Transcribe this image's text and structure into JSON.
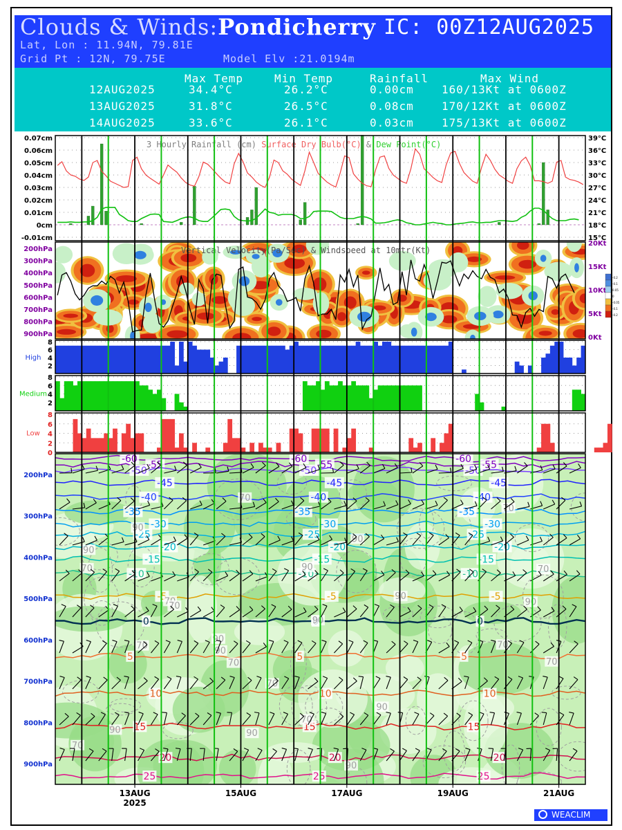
{
  "header": {
    "title": "Clouds & Winds:",
    "location": "Pondicherry",
    "ic": "IC: 00Z12AUG2025",
    "latlon": "Lat, Lon : 11.94N, 79.81E",
    "grid": "Grid Pt  : 12N, 79.75E",
    "model_elv": "Model Elv :21.0194m"
  },
  "summary": {
    "headers": [
      "Max Temp",
      "Min Temp",
      "Rainfall",
      "Max Wind"
    ],
    "rows": [
      {
        "date": "12AUG2025",
        "max_temp": "34.4°C",
        "min_temp": "26.2°C",
        "rain": "0.00cm",
        "wind": "160/13Kt at 0600Z"
      },
      {
        "date": "13AUG2025",
        "max_temp": "31.8°C",
        "min_temp": "26.5°C",
        "rain": "0.08cm",
        "wind": "170/12Kt at 0600Z"
      },
      {
        "date": "14AUG2025",
        "max_temp": "33.6°C",
        "min_temp": "26.1°C",
        "rain": "0.03cm",
        "wind": "175/13Kt at 0600Z"
      }
    ]
  },
  "chart_data": [
    {
      "type": "bar+line",
      "panel": "rain_temp",
      "legend_rain": "3 Hourly Rainfall (cm)",
      "legend_dry": "Surface Dry Bulb(°C)",
      "legend_dew": "Dew Point(°C)",
      "legend_amp": "&",
      "left_ticks": [
        "0.07cm",
        "0.06cm",
        "0.05cm",
        "0.04cm",
        "0.03cm",
        "0.02cm",
        "0.01cm",
        "0cm",
        "-0.01cm"
      ],
      "left_values": [
        0.07,
        0.06,
        0.05,
        0.04,
        0.03,
        0.02,
        0.01,
        0,
        -0.01
      ],
      "right_ticks": [
        "39°C",
        "36°C",
        "33°C",
        "30°C",
        "27°C",
        "24°C",
        "21°C",
        "18°C",
        "15°C"
      ],
      "right_values": [
        39,
        36,
        33,
        30,
        27,
        24,
        21,
        18,
        15
      ],
      "ylim_rain": [
        -0.01,
        0.07
      ],
      "ylim_temp": [
        15,
        39
      ],
      "rain": [
        0,
        0,
        0,
        0.001,
        0,
        0,
        0,
        0.007,
        0.015,
        0,
        0.065,
        0.011,
        0,
        0,
        0,
        0,
        0,
        0,
        0,
        0.001,
        0,
        0,
        0,
        0,
        0,
        0,
        0,
        0,
        0.002,
        0,
        0,
        0.031,
        0,
        0,
        0,
        0,
        0,
        0,
        0,
        0,
        0,
        0,
        0,
        0.006,
        0.012,
        0.03,
        0,
        0,
        0,
        0,
        0,
        0,
        0,
        0,
        0,
        0.004,
        0.018,
        0,
        0,
        0,
        0,
        0,
        0,
        0,
        0,
        0,
        0,
        0,
        0.001,
        0.072,
        0,
        0,
        0,
        0,
        0,
        0,
        0,
        0,
        0,
        0,
        0,
        0,
        0,
        0,
        0,
        0,
        0,
        0,
        0,
        0,
        0,
        0,
        0,
        0,
        0,
        0,
        0,
        0,
        0,
        0,
        0.002,
        0,
        0,
        0,
        0,
        0,
        0,
        0,
        0,
        0.001,
        0.05,
        0.012,
        0,
        0,
        0,
        0
      ],
      "dry_bulb": [
        32.3,
        33.2,
        31,
        30,
        29.7,
        29,
        28.7,
        29.5,
        33,
        33.5,
        30.9,
        29.8,
        28.5,
        28,
        27.5,
        27,
        27.2,
        33.5,
        34.3,
        31.5,
        30,
        29.2,
        28.5,
        27.8,
        30,
        32.4,
        31.5,
        30.7,
        29.3,
        28.2,
        27.6,
        27.3,
        29.6,
        33.1,
        32.6,
        31.5,
        30.3,
        29.2,
        28.3,
        27.9,
        32.7,
        35.2,
        33.2,
        30.5,
        29.5,
        28.3,
        27.5,
        27,
        29.5,
        33.6,
        33,
        31,
        30.2,
        29,
        28.2,
        27.5,
        31,
        35.5,
        33,
        30.4,
        29.3,
        28.3,
        27.6,
        27.1,
        30.5,
        34.6,
        34.2,
        30.3,
        29,
        28,
        27.4,
        27.2,
        31.2,
        34.3,
        34.6,
        31.6,
        30,
        29.2,
        28.4,
        28,
        31.5,
        36.3,
        35,
        31.5,
        30.5,
        29.4,
        28.6,
        28.2,
        32.5,
        35.3,
        35.7,
        32.8,
        30.6,
        29.5,
        28.5,
        28,
        31.8,
        35,
        33.5,
        31.4,
        30,
        29.3,
        28.5,
        28,
        31.5,
        33.4,
        34.3,
        32.3,
        28.6,
        28.6,
        28.4,
        28,
        28.5,
        33.1,
        33.5,
        29.5,
        28.9,
        28.7,
        28.3,
        27.7
      ],
      "dew_point": [
        18.6,
        18.6,
        18.6,
        18.7,
        18.6,
        18.6,
        18.7,
        18.7,
        19,
        19.8,
        21.8,
        22.2,
        22.2,
        22.2,
        20.5,
        19.8,
        19,
        18.8,
        18.8,
        19.5,
        20,
        20.5,
        20.6,
        20.5,
        18.8,
        18.7,
        18.6,
        19,
        19.5,
        19.8,
        19.9,
        19.6,
        19,
        18.8,
        18.8,
        19.7,
        20.7,
        21.7,
        21.8,
        21.6,
        20,
        19.2,
        19,
        18.9,
        19,
        19.6,
        20.7,
        21.8,
        21,
        20.8,
        20.3,
        20.5,
        20.5,
        20.5,
        20.2,
        19.5,
        19.5,
        20,
        21.2,
        21.3,
        21.3,
        21.3,
        21.2,
        20.5,
        19.8,
        19.5,
        19.5,
        19.5,
        19.8,
        20,
        19.8,
        19.4,
        18.4,
        18.4,
        18.5,
        18.7,
        19,
        19.2,
        19,
        18.5,
        18.3,
        18,
        18,
        18.2,
        18.4,
        18.6,
        18.4,
        18.3,
        18,
        18,
        18.2,
        18.3,
        18.4,
        18.6,
        18.7,
        18.5,
        18.5,
        18.6,
        18.6,
        18.8,
        19,
        19,
        18.9,
        18.8,
        19,
        19.8,
        20.3,
        21.3,
        22,
        22,
        21.5,
        20.4,
        19.5,
        19,
        19,
        19,
        19.3,
        19.4,
        19.2
      ]
    },
    {
      "type": "heatmap+line",
      "panel": "vertical_velocity",
      "title": "Vertical Velocity(Pa/Sec) & Windspeed at 10mtr(Kt)",
      "left_ticks": [
        "200hPa",
        "300hPa",
        "400hPa",
        "500hPa",
        "600hPa",
        "700hPa",
        "800hPa",
        "900hPa"
      ],
      "right_ticks": [
        "20Kt",
        "15Kt",
        "10Kt",
        "5Kt",
        "0Kt"
      ],
      "right_values": [
        20,
        15,
        10,
        5,
        0
      ],
      "ylim_wind": [
        0,
        20
      ],
      "wind_10m": [
        9,
        13.3,
        13.8,
        12,
        9.3,
        8,
        9,
        10.5,
        11,
        11,
        12,
        11.3,
        13,
        12.3,
        9.5,
        11.8,
        7.7,
        1.2,
        1.5,
        1.6,
        9,
        13.7,
        8,
        3,
        2.2,
        3.5,
        6.5,
        9.3,
        13,
        10,
        6,
        2.8,
        12.3,
        10.3,
        3,
        12.2,
        13.5,
        13.2,
        7,
        2,
        3.5,
        14.5,
        15,
        8.6,
        8.3,
        7.5,
        6,
        8,
        12.5,
        13.8,
        11,
        10,
        7.7,
        8,
        8.5,
        5.6,
        12.5,
        15.2,
        11.5,
        4.6,
        5,
        5,
        6,
        3.8,
        13.3,
        11.8,
        14.5,
        10.8,
        13.3,
        1.8,
        3.8,
        4.5,
        9.5,
        14.8,
        10,
        11.3,
        7,
        7.5,
        14,
        9,
        16.5,
        12.5,
        12,
        15.5,
        13,
        8.3,
        12,
        16,
        15.8,
        16.3,
        13.5,
        11,
        13.5,
        12.5,
        14.2,
        13,
        12.5,
        14.5,
        12.8,
        12.3,
        9.5,
        10.3,
        8.5,
        4.8,
        4.7,
        2.2,
        5.3,
        6.2,
        4.5,
        6,
        5.5,
        13,
        12.5,
        10.5,
        12.8,
        13.5,
        11.5,
        9.5
      ],
      "legend_values": [
        "-0.2",
        "-0.1",
        "0.05",
        "0",
        "-0.05",
        "-0.1",
        "-0.2"
      ]
    },
    {
      "type": "bar",
      "panel": "clouds",
      "layers": [
        {
          "name": "High",
          "ticks": [
            "8",
            "6",
            "4",
            "2"
          ],
          "tick_values": [
            8,
            6,
            4,
            2
          ],
          "ylim": [
            0,
            8
          ],
          "color": "#2040e0",
          "values": [
            7,
            7,
            7,
            7,
            7,
            7,
            7,
            7,
            7,
            7,
            7,
            7,
            7,
            7,
            7,
            7,
            7,
            7,
            7,
            7,
            7,
            7,
            7,
            7,
            7,
            7,
            8,
            2,
            8,
            3,
            8,
            7,
            6,
            6,
            6,
            4,
            2,
            3,
            4,
            0,
            0,
            7,
            7,
            7,
            7,
            7,
            7,
            7,
            7,
            7,
            7,
            7,
            6,
            7,
            8,
            7,
            7,
            7,
            7,
            7,
            7,
            7,
            7,
            7,
            7,
            7,
            7,
            7,
            8,
            7,
            7,
            7,
            8,
            7,
            8,
            8,
            7,
            7,
            7,
            7,
            7,
            7,
            7,
            7,
            7,
            7,
            7,
            7,
            7,
            8,
            0,
            0,
            1,
            0,
            0,
            0,
            0,
            0,
            0,
            0,
            0,
            0,
            0,
            0,
            3,
            2,
            0,
            2,
            0,
            0,
            4,
            5,
            7,
            8,
            8,
            4,
            4,
            2,
            4,
            7
          ]
        },
        {
          "name": "Medium",
          "ticks": [
            "8",
            "6",
            "4",
            "2"
          ],
          "tick_values": [
            8,
            6,
            4,
            2
          ],
          "ylim": [
            0,
            8
          ],
          "color": "#10d010",
          "values": [
            7,
            3,
            7,
            7,
            6,
            7,
            7,
            7,
            7,
            7,
            7,
            7,
            7,
            7,
            7,
            7,
            7,
            7,
            7,
            6,
            6,
            5,
            4,
            5,
            3,
            0,
            0,
            4,
            2,
            1,
            0,
            0,
            0,
            0,
            0,
            0,
            0,
            0,
            0,
            0,
            0,
            0,
            0,
            0,
            0,
            0,
            0,
            0,
            0,
            0,
            0,
            0,
            0,
            0,
            0,
            0,
            7,
            6,
            6,
            7,
            5,
            7,
            6,
            6,
            7,
            6,
            6,
            7,
            6,
            6,
            6,
            3,
            5,
            6,
            6,
            6,
            6,
            6,
            6,
            6,
            6,
            6,
            6,
            0,
            0,
            0,
            0,
            0,
            0,
            0,
            0,
            0,
            0,
            0,
            0,
            4,
            2,
            0,
            0,
            0,
            0,
            1,
            0,
            0,
            0,
            0,
            0,
            0,
            0,
            0,
            0,
            0,
            0,
            0,
            0,
            0,
            0,
            5,
            5,
            4
          ]
        },
        {
          "name": "Low",
          "ticks": [
            "8",
            "6",
            "4",
            "2",
            "0"
          ],
          "tick_values": [
            8,
            6,
            4,
            2,
            0
          ],
          "ylim": [
            0,
            8
          ],
          "color": "#f04040",
          "values": [
            0,
            0,
            0,
            0,
            7,
            4,
            3,
            5,
            3,
            3,
            3,
            4,
            3,
            5,
            0,
            4,
            6,
            3,
            4,
            4,
            0,
            0,
            0,
            1,
            7,
            7,
            7,
            1,
            4,
            1,
            0,
            2,
            0,
            0,
            1,
            0,
            0,
            0,
            2,
            7,
            3,
            3,
            1,
            0,
            2,
            0,
            2,
            1,
            1,
            0,
            2,
            0,
            0,
            5,
            5,
            4,
            0,
            0,
            5,
            5,
            5,
            5,
            0,
            5,
            0,
            1,
            3,
            5,
            0,
            0,
            0,
            1,
            0,
            0,
            0,
            0,
            0,
            0,
            0,
            0,
            3,
            1,
            2,
            0,
            0,
            3,
            0,
            2,
            4,
            6,
            0,
            0,
            0,
            0,
            0,
            0,
            0,
            0,
            0,
            0,
            0,
            0,
            0,
            0,
            0,
            0,
            0,
            0,
            0,
            1,
            6,
            6,
            2,
            0,
            0,
            0,
            0,
            0,
            0,
            0,
            0,
            0,
            1,
            1,
            2,
            6
          ]
        }
      ]
    },
    {
      "type": "contour",
      "panel": "temperature_rh_winds",
      "left_ticks": [
        "200hPa",
        "300hPa",
        "400hPa",
        "500hPa",
        "600hPa",
        "700hPa",
        "800hPa",
        "900hPa"
      ],
      "left_values": [
        200,
        300,
        400,
        500,
        600,
        700,
        800,
        900
      ],
      "ylim": [
        150,
        950
      ],
      "isotherms": [
        {
          "label": "-60",
          "color": "#8000c0",
          "level": 162
        },
        {
          "label": "-55",
          "color": "#8000c0",
          "level": 176
        },
        {
          "label": "-50",
          "color": "#7a40ff",
          "level": 190
        },
        {
          "label": "-45",
          "color": "#2020ff",
          "level": 220
        },
        {
          "label": "-40",
          "color": "#2040ff",
          "level": 255
        },
        {
          "label": "-35",
          "color": "#0090ff",
          "level": 290
        },
        {
          "label": "-30",
          "color": "#00a0f0",
          "level": 320
        },
        {
          "label": "-25",
          "color": "#00b0e0",
          "level": 345
        },
        {
          "label": "-20",
          "color": "#00b8c8",
          "level": 375
        },
        {
          "label": "-15",
          "color": "#00c0b0",
          "level": 405
        },
        {
          "label": "-10",
          "color": "#20c090",
          "level": 440
        },
        {
          "label": "-5",
          "color": "#e0a000",
          "level": 495
        },
        {
          "label": "0",
          "color": "#003050",
          "level": 555
        },
        {
          "label": "5",
          "color": "#f07030",
          "level": 640
        },
        {
          "label": "10",
          "color": "#e06020",
          "level": 730
        },
        {
          "label": "15",
          "color": "#e02020",
          "level": 810
        },
        {
          "label": "20",
          "color": "#d01050",
          "level": 885
        },
        {
          "label": "25",
          "color": "#e0108a",
          "level": 930
        }
      ],
      "rh_labels": [
        "70",
        "90"
      ]
    }
  ],
  "x_axis": {
    "labels": [
      "13AUG",
      "15AUG",
      "17AUG",
      "19AUG",
      "21AUG"
    ],
    "label_positions": [
      1,
      3,
      5,
      7,
      9
    ],
    "year": "2025",
    "days": 10,
    "day_start_hour": 0
  },
  "colors": {
    "header_bg": "#1f3fff",
    "table_bg": "#00c8c8",
    "dry_bulb": "#f04040",
    "dew_point": "#10c010",
    "rain": "#30a030",
    "day_line": "#000000",
    "noon_line": "#10c010"
  },
  "footer": {
    "brand": "WEACLIM"
  }
}
